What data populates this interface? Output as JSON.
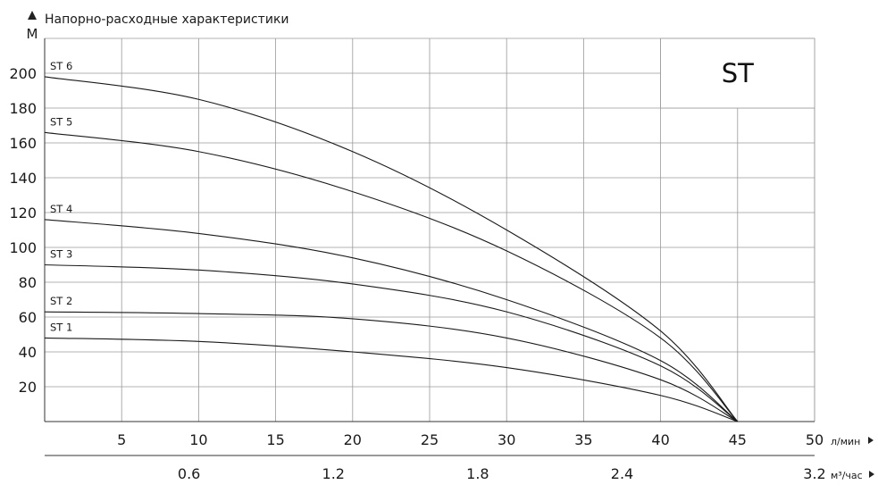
{
  "chart_data": {
    "type": "line",
    "title": "Напорно-расходные характеристики",
    "badge": "ST",
    "ylabel": "М",
    "x_unit_label": "л/мин",
    "x2_unit_label": "м³/час",
    "xlim": [
      0,
      50
    ],
    "ylim": [
      0,
      220
    ],
    "grid": true,
    "x_ticks": [
      5,
      10,
      15,
      20,
      25,
      30,
      35,
      40,
      45,
      50
    ],
    "x_tick_labels": [
      "5",
      "10",
      "15",
      "20",
      "25",
      "30",
      "35",
      "40",
      "45",
      "50"
    ],
    "x2_ticks": [
      0.6,
      1.2,
      1.8,
      2.4,
      3.2
    ],
    "x2_tick_labels": [
      "0.6",
      "1.2",
      "1.8",
      "2.4",
      "3.2"
    ],
    "y_ticks": [
      20,
      40,
      60,
      80,
      100,
      120,
      140,
      160,
      180,
      200
    ],
    "y_tick_labels": [
      "20",
      "40",
      "60",
      "80",
      "100",
      "120",
      "140",
      "160",
      "180",
      "200"
    ],
    "series": [
      {
        "name": "ST 1",
        "x": [
          0,
          10,
          20,
          30,
          40,
          45
        ],
        "y": [
          48,
          46,
          40,
          31,
          15,
          0
        ]
      },
      {
        "name": "ST 2",
        "x": [
          0,
          10,
          20,
          30,
          40,
          45
        ],
        "y": [
          63,
          62,
          59,
          48,
          24,
          0
        ]
      },
      {
        "name": "ST 3",
        "x": [
          0,
          10,
          20,
          30,
          40,
          45
        ],
        "y": [
          90,
          87,
          79,
          63,
          32,
          0
        ]
      },
      {
        "name": "ST 4",
        "x": [
          0,
          10,
          20,
          30,
          40,
          45
        ],
        "y": [
          116,
          108,
          94,
          70,
          35,
          0
        ]
      },
      {
        "name": "ST 5",
        "x": [
          0,
          10,
          20,
          30,
          40,
          45
        ],
        "y": [
          166,
          155,
          132,
          98,
          48,
          0
        ]
      },
      {
        "name": "ST 6",
        "x": [
          0,
          10,
          20,
          30,
          40,
          45
        ],
        "y": [
          198,
          185,
          155,
          110,
          52,
          0
        ]
      }
    ]
  }
}
